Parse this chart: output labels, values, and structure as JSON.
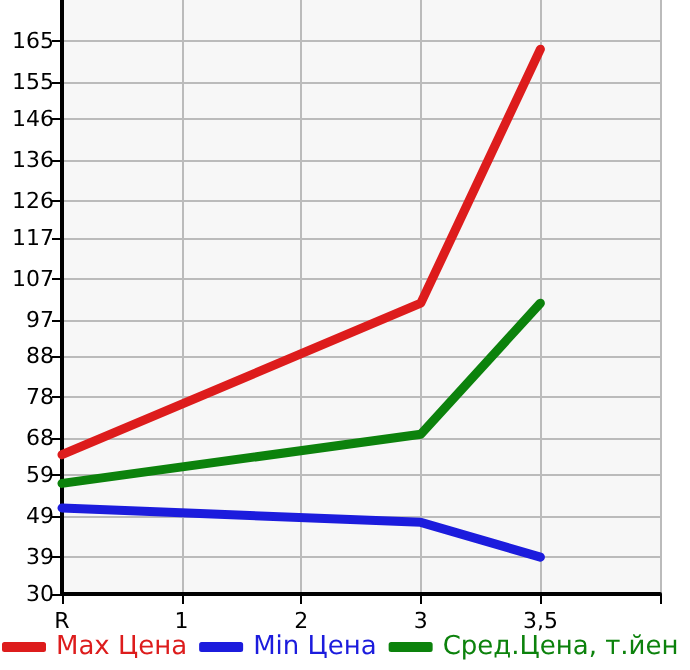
{
  "chart_data": {
    "type": "line",
    "categories": [
      "R",
      "1",
      "2",
      "3",
      "3,5",
      null
    ],
    "series": [
      {
        "name": "Max Цена",
        "color": "#dd1c1c",
        "values": [
          64,
          null,
          null,
          101,
          163,
          null
        ]
      },
      {
        "name": "Min Цена",
        "color": "#1c1cdd",
        "values": [
          51,
          null,
          null,
          47.5,
          39,
          null
        ]
      },
      {
        "name": "Сред.Цена, т.йен",
        "color": "#0c820c",
        "values": [
          57,
          null,
          null,
          69,
          101,
          null
        ]
      }
    ],
    "ylim": [
      30,
      175
    ],
    "yticks": [
      30,
      39,
      49,
      59,
      68,
      78,
      88,
      97,
      107,
      117,
      126,
      136,
      146,
      155,
      165
    ],
    "grid": true,
    "legend": "bottom",
    "marker": "none",
    "line_style": "solid"
  }
}
